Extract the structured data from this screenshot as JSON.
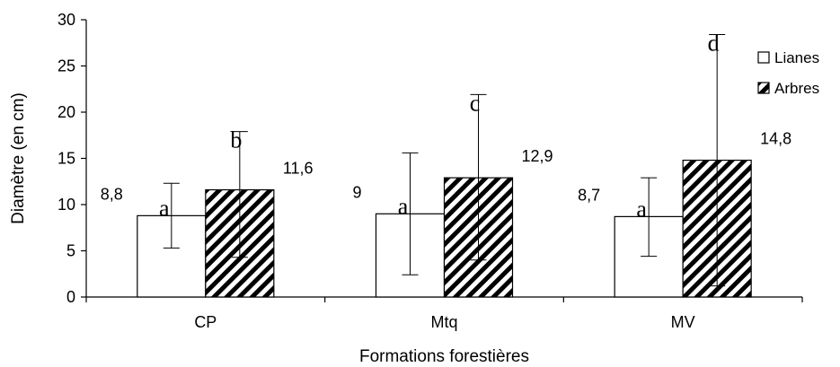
{
  "chart_data": {
    "type": "bar",
    "title": "",
    "xlabel": "Formations forestières",
    "ylabel": "Diamètre (en cm)",
    "ylim": [
      0,
      30
    ],
    "yticks": [
      0,
      5,
      10,
      15,
      20,
      25,
      30
    ],
    "categories": [
      "CP",
      "Mtq",
      "MV"
    ],
    "series": [
      {
        "name": "Lianes",
        "pattern": "solid-white",
        "values": [
          8.8,
          9,
          8.7
        ],
        "value_labels": [
          "8,8",
          "9",
          "8,7"
        ],
        "error_low": [
          5.3,
          2.4,
          4.4
        ],
        "error_high": [
          12.3,
          15.6,
          12.9
        ],
        "letters": [
          "a",
          "a",
          "a"
        ]
      },
      {
        "name": "Arbres",
        "pattern": "diagonal-hatch",
        "values": [
          11.6,
          12.9,
          14.8
        ],
        "value_labels": [
          "11,6",
          "12,9",
          "14,8"
        ],
        "error_low": [
          4.3,
          4.0,
          1.2
        ],
        "error_high": [
          17.9,
          21.9,
          28.4
        ],
        "letters": [
          "b",
          "c",
          "d"
        ]
      }
    ],
    "legend_position": "right",
    "grid": false,
    "colors": {
      "bar_edge": "#000000",
      "bar_fill": "#ffffff",
      "hatch": "#000000"
    }
  }
}
